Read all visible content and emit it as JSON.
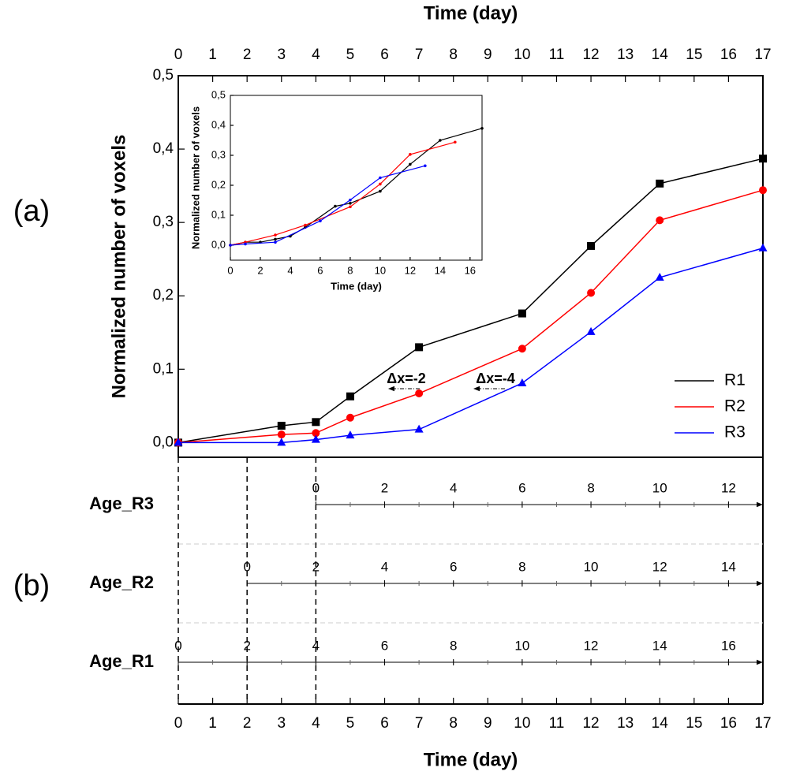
{
  "panels": {
    "a": "(a)",
    "b": "(b)"
  },
  "chart_data": [
    {
      "type": "line",
      "xlabel": "Time (day)",
      "ylabel": "Normalized number of voxels",
      "xlim": [
        0,
        17
      ],
      "ylim": [
        -0.02,
        0.5
      ],
      "xticks": [
        0,
        1,
        2,
        3,
        4,
        5,
        6,
        7,
        8,
        9,
        10,
        11,
        12,
        13,
        14,
        15,
        16,
        17
      ],
      "yticks": [
        {
          "value": 0,
          "label": "0,0"
        },
        {
          "value": 0.1,
          "label": "0,1"
        },
        {
          "value": 0.2,
          "label": "0,2"
        },
        {
          "value": 0.3,
          "label": "0,3"
        },
        {
          "value": 0.4,
          "label": "0,4"
        },
        {
          "value": 0.5,
          "label": "0,5"
        }
      ],
      "legend": "lower right",
      "annotations": [
        "Δx=-2",
        "Δx=-4"
      ],
      "series": [
        {
          "name": "R1",
          "color": "#000000",
          "marker": "square",
          "x": [
            0,
            3,
            4,
            5,
            7,
            10,
            12,
            14,
            17
          ],
          "values": [
            0,
            0.023,
            0.028,
            0.063,
            0.13,
            0.176,
            0.268,
            0.353,
            0.387
          ]
        },
        {
          "name": "R2",
          "color": "#ff0000",
          "marker": "circle",
          "x": [
            0,
            3,
            4,
            5,
            7,
            10,
            12,
            14,
            17
          ],
          "values": [
            0,
            0.011,
            0.013,
            0.034,
            0.067,
            0.128,
            0.204,
            0.303,
            0.344
          ]
        },
        {
          "name": "R3",
          "color": "#0000ff",
          "marker": "triangle",
          "x": [
            0,
            3,
            4,
            5,
            7,
            10,
            12,
            14,
            17
          ],
          "values": [
            0,
            0,
            0.004,
            0.01,
            0.018,
            0.081,
            0.151,
            0.225,
            0.265
          ]
        }
      ]
    },
    {
      "type": "line",
      "xlabel": "Time (day)",
      "ylabel": "Normalized number of voxels",
      "xlim": [
        0,
        16.8
      ],
      "ylim": [
        -0.05,
        0.5
      ],
      "xticks": [
        0,
        2,
        4,
        6,
        8,
        10,
        12,
        14,
        16
      ],
      "yticks": [
        {
          "value": 0,
          "label": "0,0"
        },
        {
          "value": 0.1,
          "label": "0,1"
        },
        {
          "value": 0.2,
          "label": "0,2"
        },
        {
          "value": 0.3,
          "label": "0,3"
        },
        {
          "value": 0.4,
          "label": "0,4"
        },
        {
          "value": 0.5,
          "label": "0,5"
        }
      ],
      "series": [
        {
          "color": "#000000",
          "x": [
            0,
            1,
            2,
            3,
            4,
            5,
            7,
            8,
            10,
            12,
            14,
            16.8
          ],
          "values": [
            0,
            0.01,
            0.01,
            0.02,
            0.03,
            0.06,
            0.13,
            0.14,
            0.18,
            0.27,
            0.35,
            0.39
          ]
        },
        {
          "color": "#ff0000",
          "x": [
            0,
            1,
            3,
            5,
            8,
            10,
            12,
            15
          ],
          "values": [
            0,
            0.01,
            0.034,
            0.067,
            0.128,
            0.204,
            0.303,
            0.344
          ]
        },
        {
          "color": "#0000ff",
          "x": [
            0,
            1,
            3,
            6,
            8,
            10,
            13
          ],
          "values": [
            0,
            0.004,
            0.01,
            0.081,
            0.151,
            0.225,
            0.265
          ]
        }
      ]
    },
    {
      "type": "timeline",
      "xlabel": "Time (day)",
      "xlim": [
        0,
        17
      ],
      "xticks": [
        0,
        1,
        2,
        3,
        4,
        5,
        6,
        7,
        8,
        9,
        10,
        11,
        12,
        13,
        14,
        15,
        16,
        17
      ],
      "rows": [
        {
          "name": "Age_R3",
          "offset": 4,
          "ticks": [
            0,
            2,
            4,
            6,
            8,
            10,
            12
          ]
        },
        {
          "name": "Age_R2",
          "offset": 2,
          "ticks": [
            0,
            2,
            4,
            6,
            8,
            10,
            12,
            14
          ]
        },
        {
          "name": "Age_R1",
          "offset": 0,
          "ticks": [
            0,
            2,
            4,
            6,
            8,
            10,
            12,
            14,
            16
          ]
        }
      ]
    }
  ]
}
